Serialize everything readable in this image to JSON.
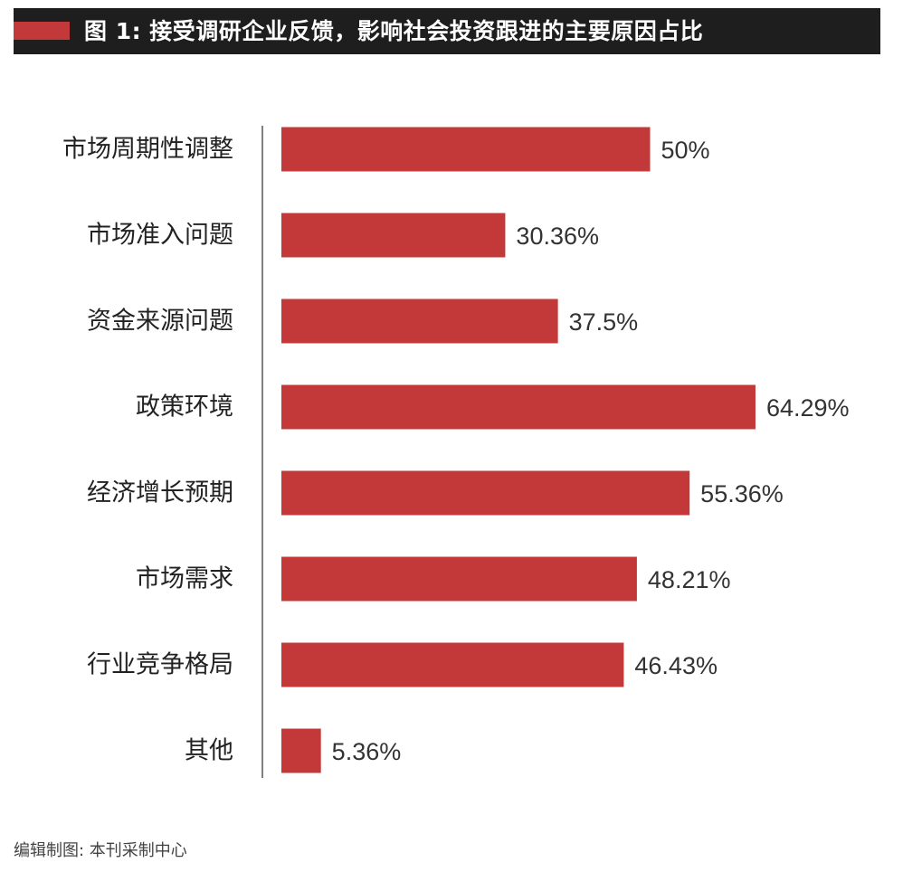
{
  "header": {
    "title": "图 1: 接受调研企业反馈，影响社会投资跟进的主要原因占比",
    "accent_color": "#c3393a",
    "background_color": "#1e1e1e"
  },
  "footer": {
    "note": "编辑制图: 本刊采制中心"
  },
  "chart_data": {
    "type": "bar",
    "orientation": "horizontal",
    "title": "图 1: 接受调研企业反馈，影响社会投资跟进的主要原因占比",
    "xlabel": "",
    "ylabel": "",
    "categories": [
      "市场周期性调整",
      "市场准入问题",
      "资金来源问题",
      "政策环境",
      "经济增长预期",
      "市场需求",
      "行业竞争格局",
      "其他"
    ],
    "values": [
      50,
      30.36,
      37.5,
      64.29,
      55.36,
      48.21,
      46.43,
      5.36
    ],
    "value_labels": [
      "50%",
      "30.36%",
      "37.5%",
      "64.29%",
      "55.36%",
      "48.21%",
      "46.43%",
      "5.36%"
    ],
    "unit": "%",
    "xlim": [
      0,
      100
    ],
    "bar_color": "#c3393a",
    "grid": false,
    "legend": "none"
  }
}
